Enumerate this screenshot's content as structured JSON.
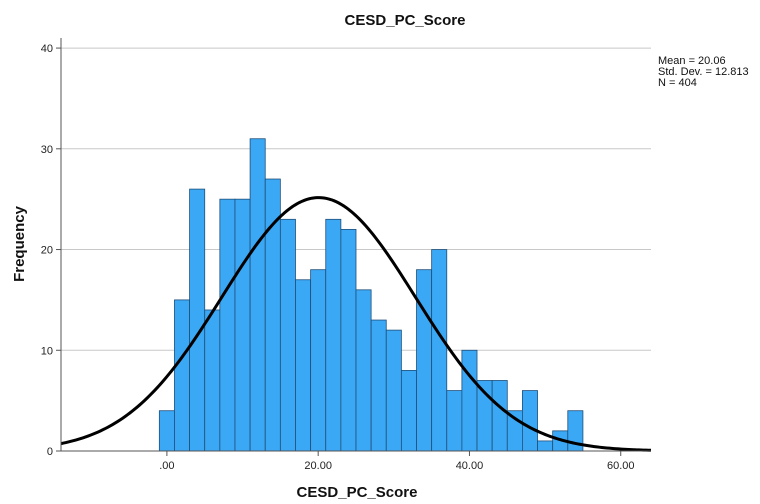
{
  "chart_data": {
    "type": "bar",
    "title": "CESD_PC_Score",
    "xlabel": "CESD_PC_Score",
    "ylabel": "Frequency",
    "xlim": [
      -14,
      64
    ],
    "ylim": [
      0,
      41
    ],
    "x_ticks": [
      0,
      20,
      40,
      60
    ],
    "x_tick_labels": [
      ".00",
      "20.00",
      "40.00",
      "60.00"
    ],
    "y_ticks": [
      0,
      10,
      20,
      30,
      40
    ],
    "y_tick_labels": [
      "0",
      "10",
      "20",
      "30",
      "40"
    ],
    "grid": "horizontal",
    "bin_width": 2,
    "bins": [
      {
        "x0": -1,
        "x1": 1,
        "value": 4
      },
      {
        "x0": 1,
        "x1": 3,
        "value": 15
      },
      {
        "x0": 3,
        "x1": 5,
        "value": 26
      },
      {
        "x0": 5,
        "x1": 7,
        "value": 14
      },
      {
        "x0": 7,
        "x1": 9,
        "value": 25
      },
      {
        "x0": 9,
        "x1": 11,
        "value": 25
      },
      {
        "x0": 11,
        "x1": 13,
        "value": 31
      },
      {
        "x0": 13,
        "x1": 15,
        "value": 27
      },
      {
        "x0": 15,
        "x1": 17,
        "value": 23
      },
      {
        "x0": 17,
        "x1": 19,
        "value": 17
      },
      {
        "x0": 19,
        "x1": 21,
        "value": 18
      },
      {
        "x0": 21,
        "x1": 23,
        "value": 23
      },
      {
        "x0": 23,
        "x1": 25,
        "value": 22
      },
      {
        "x0": 25,
        "x1": 27,
        "value": 16
      },
      {
        "x0": 27,
        "x1": 29,
        "value": 13
      },
      {
        "x0": 29,
        "x1": 31,
        "value": 12
      },
      {
        "x0": 31,
        "x1": 33,
        "value": 8
      },
      {
        "x0": 33,
        "x1": 35,
        "value": 18
      },
      {
        "x0": 35,
        "x1": 37,
        "value": 20
      },
      {
        "x0": 37,
        "x1": 39,
        "value": 6
      },
      {
        "x0": 39,
        "x1": 41,
        "value": 10
      },
      {
        "x0": 41,
        "x1": 43,
        "value": 7
      },
      {
        "x0": 43,
        "x1": 45,
        "value": 7
      },
      {
        "x0": 45,
        "x1": 47,
        "value": 4
      },
      {
        "x0": 47,
        "x1": 49,
        "value": 6
      },
      {
        "x0": 49,
        "x1": 51,
        "value": 1
      },
      {
        "x0": 51,
        "x1": 53,
        "value": 2
      },
      {
        "x0": 53,
        "x1": 55,
        "value": 4
      }
    ],
    "normal_curve": {
      "mean": 20.06,
      "std_dev": 12.813,
      "n": 404
    },
    "stats_text": [
      "Mean = 20.06",
      "Std. Dev. = 12.813",
      "N = 404"
    ],
    "colors": {
      "bar_fill": "#3aa8f5",
      "bar_stroke": "#1f4f7a",
      "curve": "#000000",
      "grid": "#c8c8c8",
      "axis": "#555555"
    }
  }
}
